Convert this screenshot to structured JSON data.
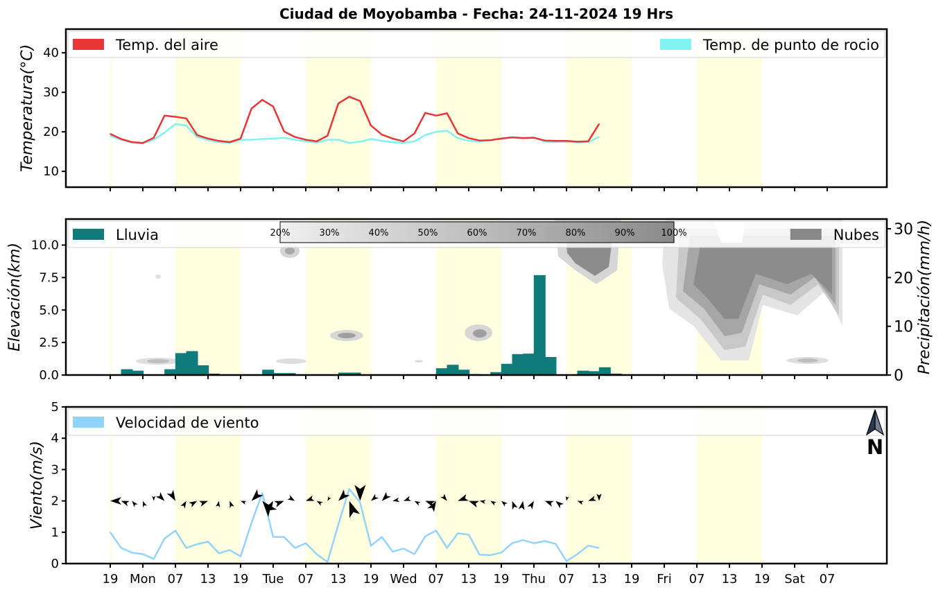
{
  "title": "Ciudad de Moyobamba   -   Fecha: 24-11-2024 19 Hrs",
  "x_ticks": [
    "19",
    "Mon",
    "07",
    "13",
    "19",
    "Tue",
    "07",
    "13",
    "19",
    "Wed",
    "07",
    "13",
    "19",
    "Thu",
    "07",
    "13",
    "19",
    "Fri",
    "07",
    "13",
    "19",
    "Sat",
    "07"
  ],
  "north_arrow_label": "N",
  "colors": {
    "air_temp": "#e83535",
    "dew_point": "#7ff2f2",
    "rain": "#0f7b7b",
    "clouds": "#888888",
    "wind": "#93d3fb",
    "day_band": "#ffffe0"
  },
  "chart_data": [
    {
      "type": "line",
      "ylabel": "Temperatura(°C)",
      "ylim": [
        6,
        46
      ],
      "yticks": [
        10,
        20,
        30,
        40
      ],
      "x_step_hours": 3,
      "series": [
        {
          "name": "Temp. del aire",
          "values": [
            19.5,
            18.2,
            17.4,
            17.2,
            18.5,
            24.1,
            23.8,
            23.4,
            19.2,
            18.3,
            17.7,
            17.4,
            18.3,
            25.9,
            28.1,
            26.4,
            20.1,
            18.7,
            18.0,
            17.6,
            19.0,
            27.2,
            28.9,
            27.8,
            21.6,
            19.3,
            18.3,
            17.6,
            19.6,
            24.8,
            24.1,
            24.7,
            19.6,
            18.4,
            17.8,
            17.9,
            18.3,
            18.6,
            18.4,
            18.5,
            17.8,
            17.7,
            17.7,
            17.5,
            17.6,
            22.0
          ]
        },
        {
          "name": "Temp. de punto de rocio",
          "values": [
            19.0,
            18.0,
            17.3,
            17.1,
            18.0,
            19.8,
            22.0,
            21.6,
            18.7,
            17.9,
            17.4,
            17.2,
            18.0,
            18.0,
            18.2,
            18.3,
            18.5,
            18.0,
            17.6,
            17.3,
            18.0,
            18.0,
            17.2,
            17.5,
            18.2,
            17.7,
            17.4,
            17.2,
            17.6,
            19.2,
            20.0,
            20.3,
            18.4,
            17.7,
            17.6,
            17.9,
            18.3,
            18.7,
            18.5,
            18.6,
            17.5,
            17.4,
            17.5,
            17.3,
            17.4,
            18.7
          ]
        }
      ]
    },
    {
      "type": "bar",
      "ylabel": "Elevación(km)",
      "y2label": "Precipitación(mm/h)",
      "ylim": [
        0,
        12
      ],
      "yticks": [
        0.0,
        2.5,
        5.0,
        7.5,
        10.0
      ],
      "y2lim": [
        0,
        32
      ],
      "y2ticks": [
        0,
        10,
        20,
        30
      ],
      "series": [
        {
          "name": "Lluvia",
          "values": [
            0,
            1.2,
            0.9,
            0,
            0,
            1.2,
            4.5,
            4.9,
            2.0,
            0.3,
            0,
            0,
            0,
            0,
            1.1,
            0.4,
            0.4,
            0,
            0,
            0,
            0,
            0.5,
            0.5,
            0.1,
            0.1,
            0,
            0,
            0,
            0,
            0,
            1.4,
            2.1,
            1.1,
            0.2,
            0,
            0.6,
            2.3,
            4.3,
            4.4,
            20.5,
            3.7,
            0,
            0,
            0.9,
            0.8,
            1.6,
            0.3
          ]
        },
        {
          "name": "Nubes"
        }
      ],
      "colorbar_ticks": [
        "20%",
        "30%",
        "40%",
        "50%",
        "60%",
        "70%",
        "80%",
        "90%",
        "100%"
      ]
    },
    {
      "type": "line",
      "ylabel": "Viento(m/s)",
      "ylim": [
        0,
        5
      ],
      "yticks": [
        0,
        1,
        2,
        3,
        4,
        5
      ],
      "series": [
        {
          "name": "Velocidad de viento",
          "values": [
            1.0,
            0.5,
            0.35,
            0.3,
            0.15,
            0.8,
            1.05,
            0.5,
            0.62,
            0.7,
            0.33,
            0.43,
            0.23,
            1.3,
            2.25,
            0.85,
            0.85,
            0.5,
            0.65,
            0.3,
            0.05,
            1.25,
            2.38,
            1.95,
            0.57,
            0.85,
            0.38,
            0.48,
            0.3,
            0.87,
            1.05,
            0.5,
            0.97,
            0.92,
            0.28,
            0.27,
            0.35,
            0.65,
            0.75,
            0.65,
            0.72,
            0.63,
            0.08,
            0.3,
            0.57,
            0.5
          ]
        }
      ]
    }
  ]
}
